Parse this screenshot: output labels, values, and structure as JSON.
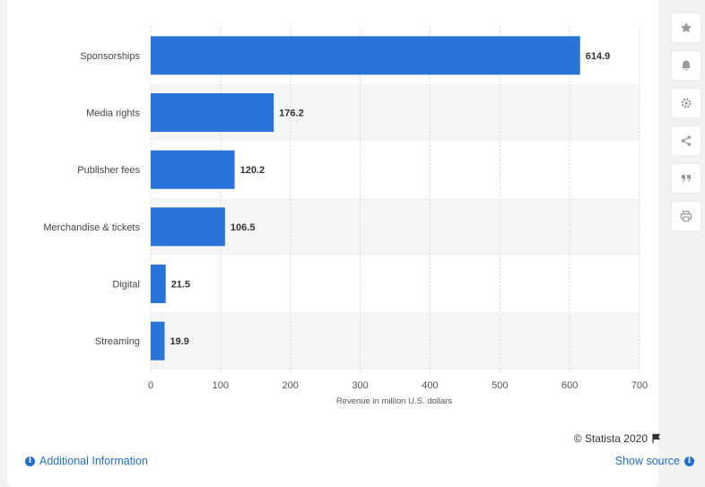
{
  "chart_data": {
    "type": "bar",
    "orientation": "horizontal",
    "categories": [
      "Sponsorships",
      "Media rights",
      "Publisher fees",
      "Merchandise & tickets",
      "Digital",
      "Streaming"
    ],
    "values": [
      614.9,
      176.2,
      120.2,
      106.5,
      21.5,
      19.9
    ],
    "value_labels": [
      "614.9",
      "176.2",
      "120.2",
      "106.5",
      "21.5",
      "19.9"
    ],
    "xlabel": "Revenue in million U.S. dollars",
    "ylabel": "",
    "xlim": [
      0,
      700
    ],
    "xticks": [
      0,
      100,
      200,
      300,
      400,
      500,
      600,
      700
    ],
    "grid": true,
    "bar_color": "#2a74d9"
  },
  "footer": {
    "copyright": "© Statista 2020",
    "additional_info": "Additional Information",
    "show_source": "Show source"
  },
  "sidebar": {
    "buttons": [
      "star-icon",
      "bell-icon",
      "gear-icon",
      "share-icon",
      "quote-icon",
      "print-icon"
    ]
  },
  "colors": {
    "accent": "#1f6fd1",
    "bar": "#2a74d9",
    "alt_row": "#f5f5f5"
  }
}
